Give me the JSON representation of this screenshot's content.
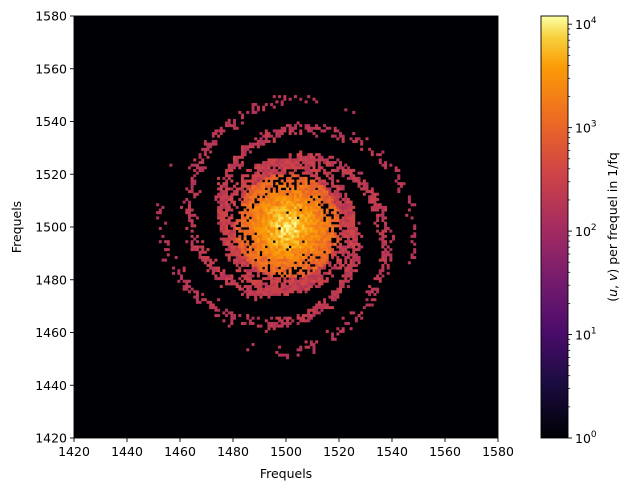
{
  "chart_data": {
    "type": "heatmap",
    "title": "",
    "xlabel": "Frequels",
    "ylabel": "Frequels",
    "xlim": [
      1420,
      1580
    ],
    "ylim": [
      1420,
      1580
    ],
    "xticks": [
      "1420",
      "1440",
      "1460",
      "1480",
      "1500",
      "1520",
      "1540",
      "1560",
      "1580"
    ],
    "yticks": [
      "1420",
      "1440",
      "1460",
      "1480",
      "1500",
      "1520",
      "1540",
      "1560",
      "1580"
    ],
    "background_color": "#000004",
    "colormap": "inferno",
    "colorbar": {
      "label_prefix": "(",
      "label_var_u": "u",
      "label_sep": ", ",
      "label_var_v": "v",
      "label_suffix": ") per frequel in 1/fq",
      "scale": "log",
      "range": [
        1,
        12000
      ],
      "ticks": [
        {
          "base": "10",
          "exp": "0",
          "value": 1
        },
        {
          "base": "10",
          "exp": "1",
          "value": 10
        },
        {
          "base": "10",
          "exp": "2",
          "value": 100
        },
        {
          "base": "10",
          "exp": "3",
          "value": 1000
        },
        {
          "base": "10",
          "exp": "4",
          "value": 10000
        }
      ]
    },
    "distribution": {
      "center": [
        1500,
        1500
      ],
      "extent_radius": 50,
      "arm_count": 4,
      "peak_value": 12000,
      "edge_value": 150
    }
  }
}
